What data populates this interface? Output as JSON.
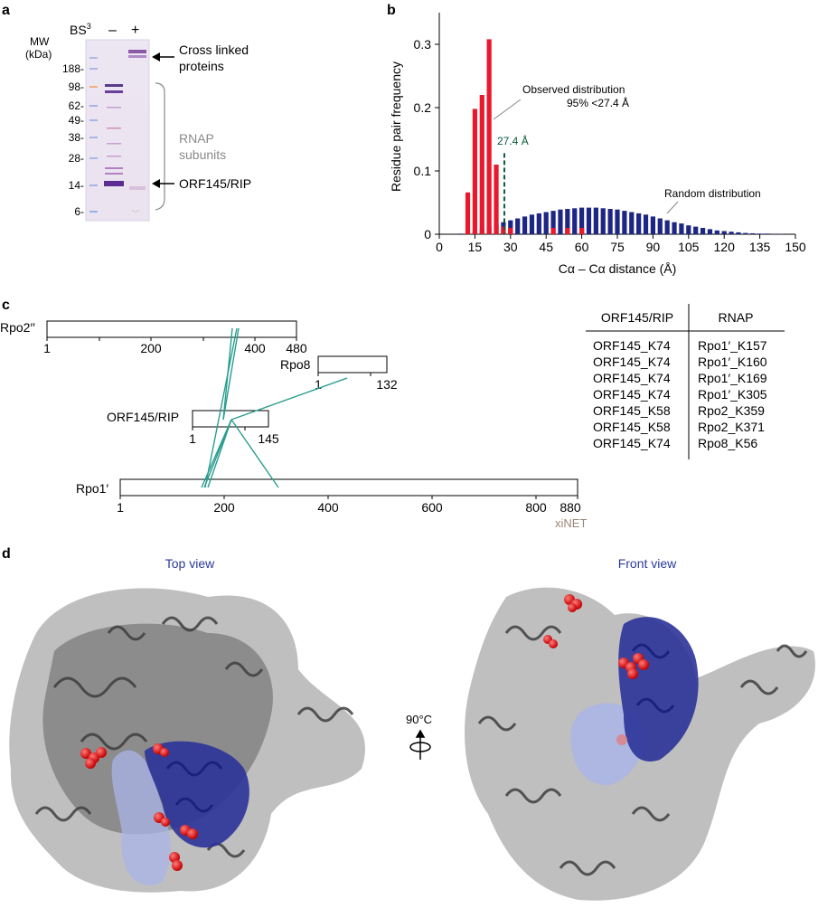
{
  "panel_a": {
    "letter": "a",
    "mw_label": "MW",
    "kda_label": "(kDa)",
    "bs3_label": "BS",
    "bs3_sup": "3",
    "lane_minus": "–",
    "lane_plus": "+",
    "ladder": [
      "188-",
      "98-",
      "62-",
      "49-",
      "38-",
      "28-",
      "14-",
      "6-"
    ],
    "ann_crosslinked_1": "Cross linked",
    "ann_crosslinked_2": "proteins",
    "ann_rnap_1": "RNAP",
    "ann_rnap_2": "subunits",
    "ann_orf": "ORF145/RIP"
  },
  "panel_b": {
    "letter": "b",
    "ann_observed_1": "Observed distribution",
    "ann_observed_2": "95% <27.4 Å",
    "ann_cutoff": "27.4 Å",
    "ann_random": "Random distribution",
    "colors": {
      "observed": "#e8192c",
      "random": "#1d2585",
      "cutoff": "#0b5a3a"
    }
  },
  "chart_data": {
    "type": "bar",
    "xlabel": "Cα – Cα distance (Å)",
    "ylabel": "Residue pair frequency",
    "xlim": [
      0,
      150
    ],
    "ylim": [
      0,
      0.35
    ],
    "xticks": [
      0,
      15,
      30,
      45,
      60,
      75,
      90,
      105,
      120,
      135,
      150
    ],
    "yticks": [
      0,
      0.1,
      0.2,
      0.3
    ],
    "cutoff": 27.4,
    "series": [
      {
        "name": "Observed distribution",
        "x": [
          12,
          15,
          18,
          21,
          24,
          27,
          30,
          48,
          54,
          60
        ],
        "values": [
          0.066,
          0.198,
          0.22,
          0.308,
          0.11,
          0.012,
          0.01,
          0.01,
          0.01,
          0.01
        ]
      },
      {
        "name": "Random distribution",
        "x": [
          9,
          12,
          15,
          18,
          21,
          24,
          27,
          30,
          33,
          36,
          39,
          42,
          45,
          48,
          51,
          54,
          57,
          60,
          63,
          66,
          69,
          72,
          75,
          78,
          81,
          84,
          87,
          90,
          93,
          96,
          99,
          102,
          105,
          108,
          111,
          114,
          117,
          120,
          123,
          126,
          129,
          132,
          135,
          138,
          141,
          144,
          147
        ],
        "values": [
          0.001,
          0.002,
          0.004,
          0.008,
          0.012,
          0.016,
          0.019,
          0.022,
          0.025,
          0.028,
          0.031,
          0.033,
          0.035,
          0.037,
          0.039,
          0.04,
          0.041,
          0.042,
          0.042,
          0.042,
          0.041,
          0.04,
          0.039,
          0.037,
          0.035,
          0.033,
          0.031,
          0.028,
          0.025,
          0.022,
          0.019,
          0.017,
          0.014,
          0.012,
          0.01,
          0.008,
          0.006,
          0.005,
          0.004,
          0.003,
          0.002,
          0.0015,
          0.001,
          0.001,
          0.0005,
          0.0005,
          0.0003
        ]
      }
    ]
  },
  "panel_c": {
    "letter": "c",
    "proteins": [
      {
        "name": "Rpo2′′",
        "length": 480,
        "ticks": [
          "1",
          "200",
          "400",
          "480"
        ]
      },
      {
        "name": "Rpo8",
        "length": 132,
        "ticks": [
          "1",
          "132"
        ]
      },
      {
        "name": "ORF145/RIP",
        "length": 145,
        "ticks": [
          "1",
          "145"
        ]
      },
      {
        "name": "Rpo1′",
        "length": 880,
        "ticks": [
          "1",
          "200",
          "400",
          "600",
          "800",
          "880"
        ]
      }
    ],
    "xinet_label": "xiNET",
    "table": {
      "headers": [
        "ORF145/RIP",
        "RNAP"
      ],
      "rows": [
        [
          "ORF145_K74",
          "Rpo1′_K157"
        ],
        [
          "ORF145_K74",
          "Rpo1′_K160"
        ],
        [
          "ORF145_K74",
          "Rpo1′_K169"
        ],
        [
          "ORF145_K74",
          "Rpo1′_K305"
        ],
        [
          "ORF145_K58",
          "Rpo2_K359"
        ],
        [
          "ORF145_K58",
          "Rpo2_K371"
        ],
        [
          "ORF145_K74",
          "Rpo8_K56"
        ]
      ]
    }
  },
  "panel_d": {
    "letter": "d",
    "top_view": "Top view",
    "front_view": "Front view",
    "rotation": "90°C"
  }
}
